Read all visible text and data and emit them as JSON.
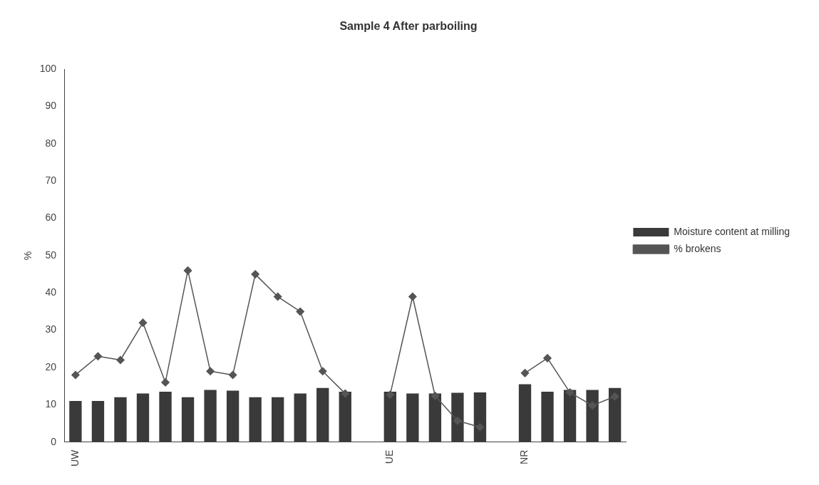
{
  "chart_data": {
    "type": "bar",
    "title": "Sample 4 After parboiling",
    "ylabel": "%",
    "categories": [
      "UW",
      null,
      null,
      null,
      null,
      null,
      null,
      null,
      null,
      null,
      null,
      null,
      null,
      null,
      "UE",
      null,
      null,
      null,
      null,
      null,
      "NR",
      null,
      null,
      null,
      null
    ],
    "series": [
      {
        "name": "Moisture content at milling",
        "color": "#3a3a3a",
        "values": [
          11,
          11,
          12,
          13,
          13.5,
          12,
          14,
          13.8,
          12,
          12,
          13,
          14.5,
          13.5,
          null,
          13.5,
          13,
          13,
          13.2,
          13.3,
          null,
          15.5,
          13.5,
          14,
          14,
          14.5
        ]
      },
      {
        "name": "% brokens",
        "type": "line",
        "color": "#555555",
        "marker": "diamond",
        "values": [
          18,
          23,
          22,
          32,
          16,
          46,
          19,
          18,
          45,
          39,
          35,
          19,
          13,
          null,
          12.7,
          39,
          12.4,
          5.7,
          4,
          null,
          18.5,
          22.5,
          13.3,
          9.8,
          12.2
        ]
      }
    ],
    "ylim": [
      0,
      100
    ],
    "yticks": [
      0,
      10,
      20,
      30,
      40,
      50,
      60,
      70,
      80,
      90,
      100
    ],
    "grid": false,
    "legend": "right"
  }
}
